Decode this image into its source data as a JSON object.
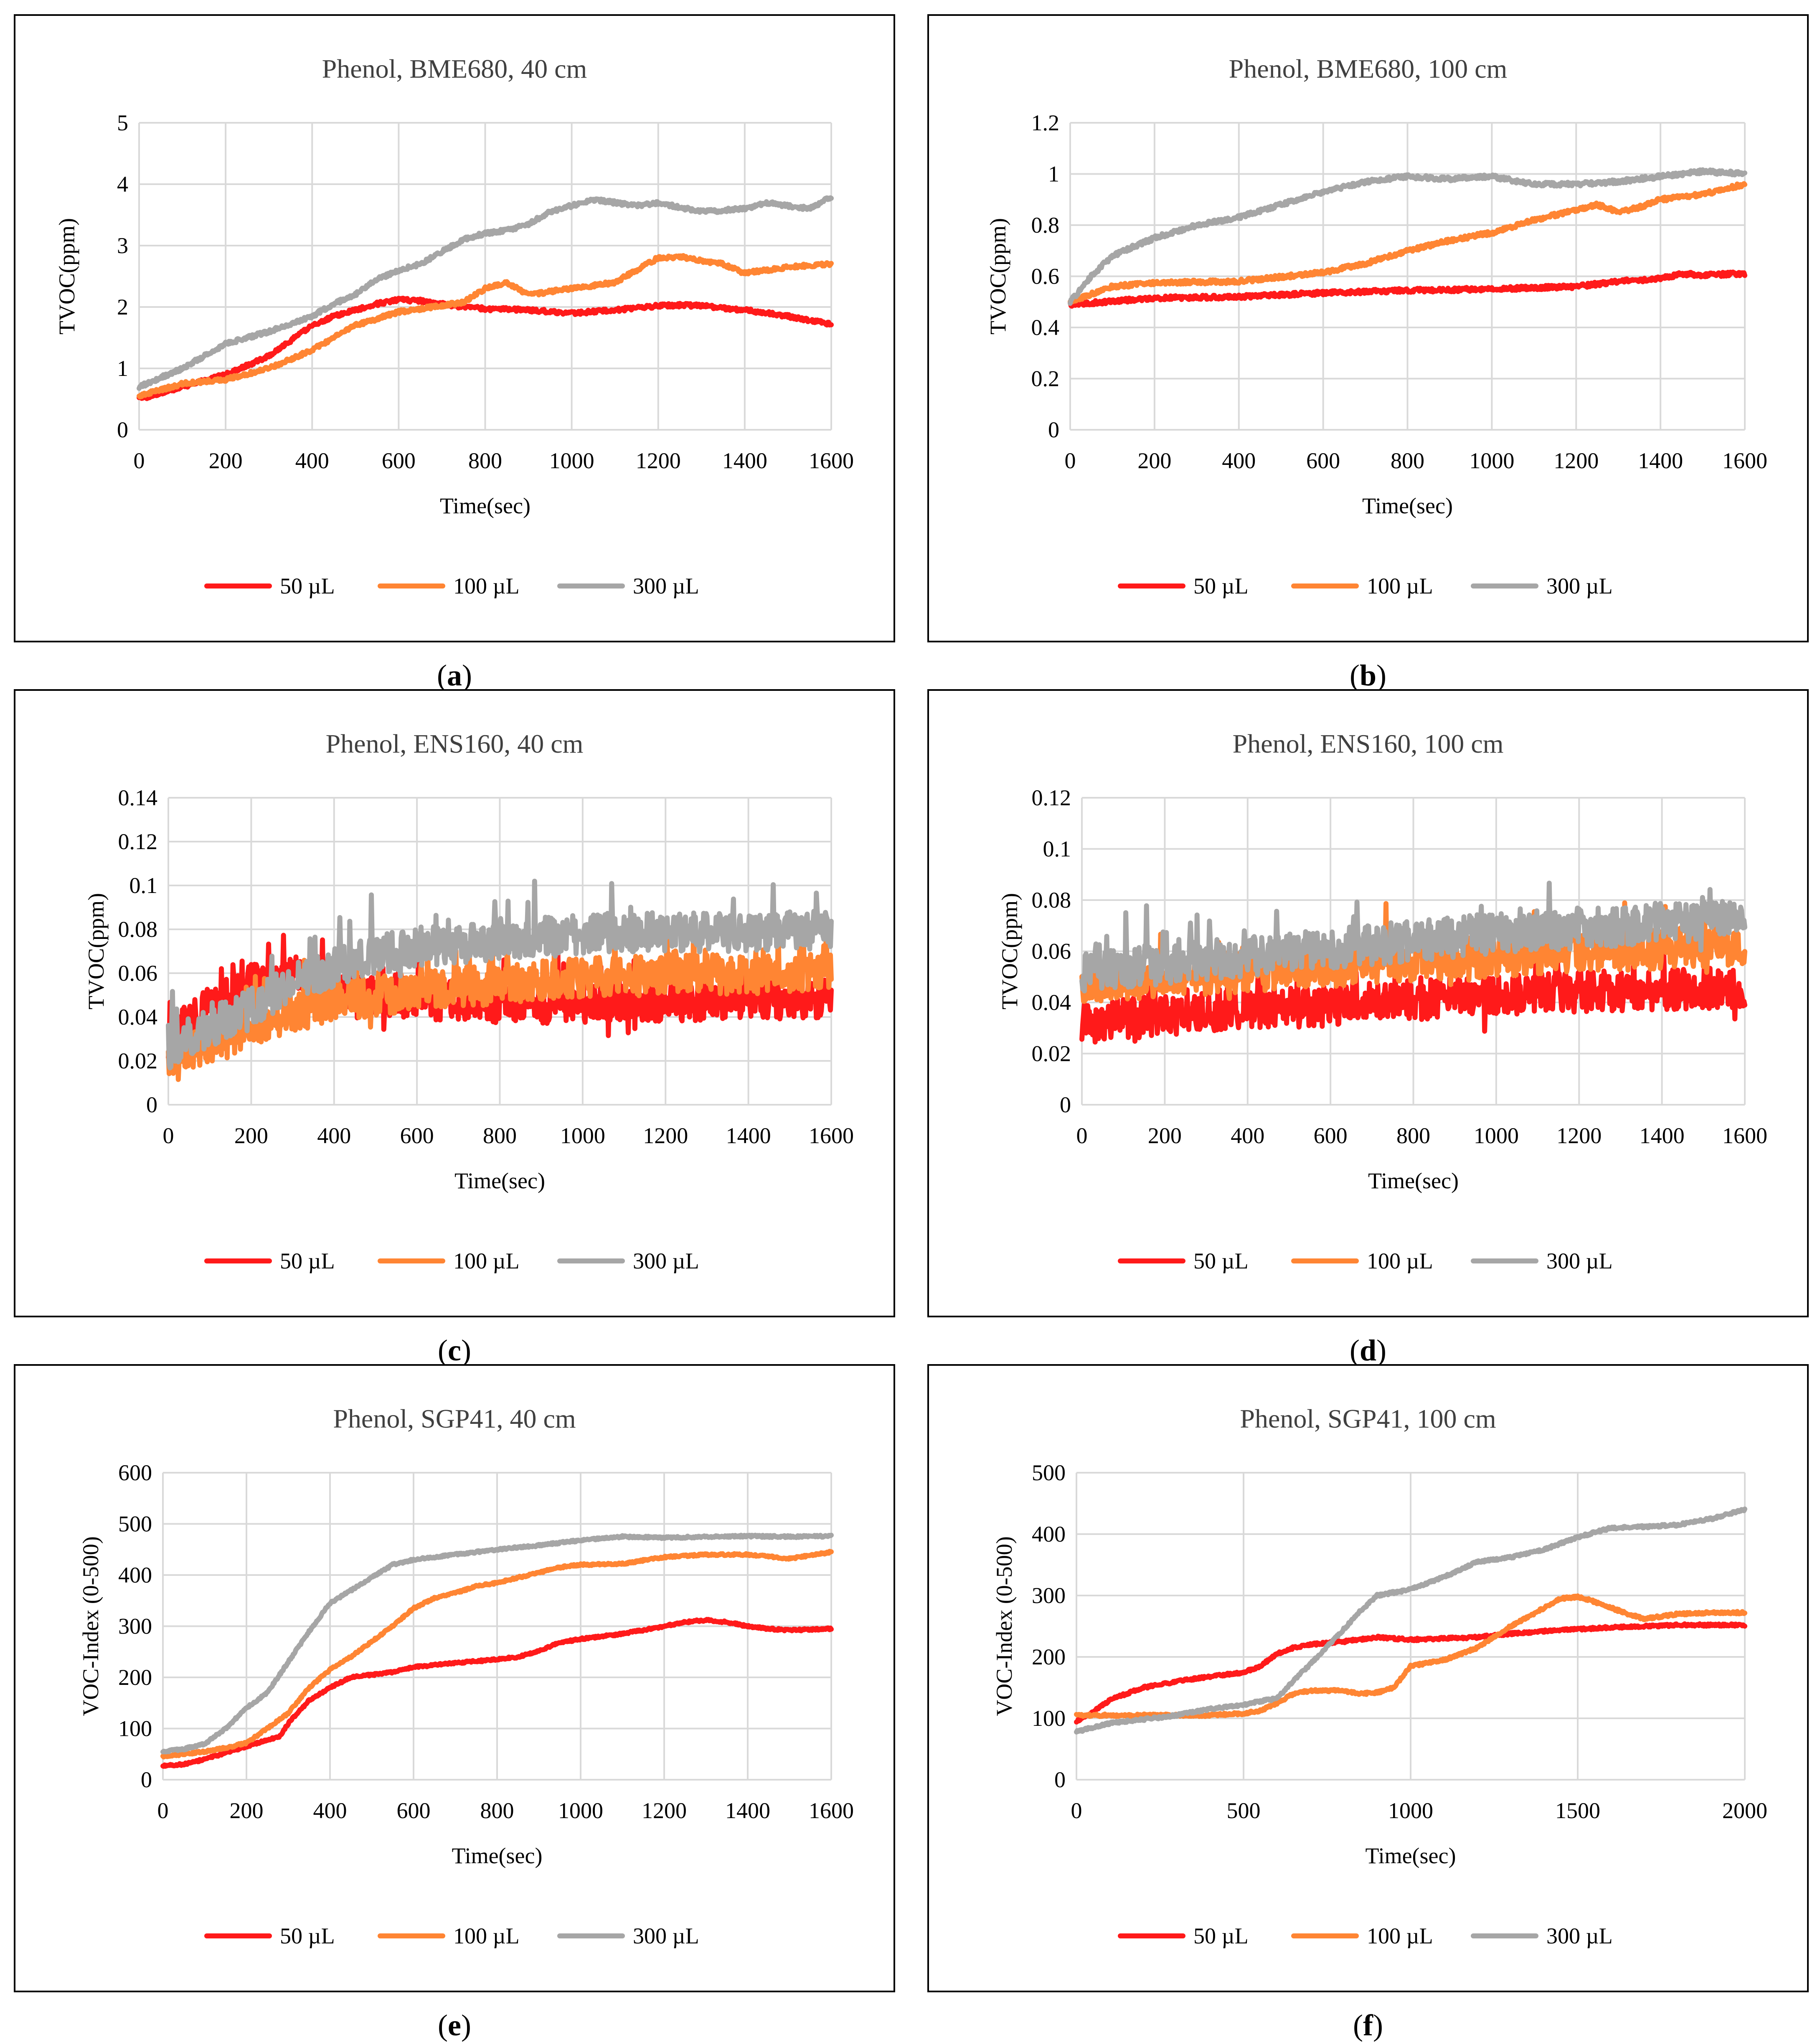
{
  "figure": {
    "colors": {
      "s50": "#ff1a1a",
      "s100": "#ff8533",
      "s300": "#a6a6a6"
    }
  },
  "chart_data": [
    {
      "id": "a",
      "type": "line",
      "caption_letter": "a",
      "title": "Phenol, BME680, 40 cm",
      "xlabel": "Time(sec)",
      "ylabel": "TVOC(ppm)",
      "xlim": [
        0,
        1600
      ],
      "ylim": [
        0,
        5
      ],
      "xticks": [
        0,
        200,
        400,
        600,
        800,
        1000,
        1200,
        1400,
        1600
      ],
      "yticks": [
        0,
        1,
        2,
        3,
        4,
        5
      ],
      "ytick_labels": [
        "0",
        "1",
        "2",
        "3",
        "4",
        "5"
      ],
      "xtick_labels": [
        "0",
        "200",
        "400",
        "600",
        "800",
        "1000",
        "1200",
        "1400",
        "1600"
      ],
      "noise": 0.03,
      "series": [
        {
          "name": "50 µL",
          "color": "#ff1a1a",
          "x": [
            0,
            100,
            200,
            300,
            400,
            450,
            500,
            550,
            600,
            650,
            700,
            750,
            800,
            900,
            1000,
            1100,
            1200,
            1250,
            1300,
            1400,
            1500,
            1600
          ],
          "y": [
            0.5,
            0.7,
            0.9,
            1.2,
            1.7,
            1.85,
            1.95,
            2.05,
            2.12,
            2.1,
            2.05,
            2.0,
            1.97,
            1.95,
            1.9,
            1.95,
            2.02,
            2.03,
            2.02,
            1.95,
            1.85,
            1.72
          ]
        },
        {
          "name": "100 µL",
          "color": "#ff8533",
          "x": [
            0,
            100,
            200,
            300,
            400,
            500,
            600,
            700,
            750,
            800,
            850,
            900,
            1000,
            1100,
            1150,
            1200,
            1250,
            1300,
            1350,
            1400,
            1500,
            1600
          ],
          "y": [
            0.55,
            0.75,
            0.82,
            1.0,
            1.3,
            1.7,
            1.92,
            2.02,
            2.08,
            2.3,
            2.4,
            2.2,
            2.3,
            2.4,
            2.6,
            2.8,
            2.82,
            2.75,
            2.7,
            2.55,
            2.65,
            2.7
          ]
        },
        {
          "name": "300 µL",
          "color": "#a6a6a6",
          "x": [
            0,
            100,
            200,
            300,
            400,
            450,
            500,
            550,
            600,
            650,
            700,
            750,
            800,
            850,
            900,
            950,
            1000,
            1050,
            1100,
            1150,
            1200,
            1300,
            1400,
            1450,
            1500,
            1550,
            1600
          ],
          "y": [
            0.7,
            1.0,
            1.4,
            1.6,
            1.85,
            2.05,
            2.2,
            2.45,
            2.6,
            2.7,
            2.9,
            3.1,
            3.2,
            3.25,
            3.35,
            3.55,
            3.65,
            3.75,
            3.7,
            3.65,
            3.7,
            3.55,
            3.6,
            3.7,
            3.65,
            3.6,
            3.8
          ]
        }
      ]
    },
    {
      "id": "b",
      "type": "line",
      "caption_letter": "b",
      "title": "Phenol, BME680, 100 cm",
      "xlabel": "Time(sec)",
      "ylabel": "TVOC(ppm)",
      "xlim": [
        0,
        1600
      ],
      "ylim": [
        0,
        1.2
      ],
      "xticks": [
        0,
        200,
        400,
        600,
        800,
        1000,
        1200,
        1400,
        1600
      ],
      "yticks": [
        0,
        0.2,
        0.4,
        0.6,
        0.8,
        1,
        1.2
      ],
      "ytick_labels": [
        "0",
        "0.2",
        "0.4",
        "0.6",
        "0.8",
        "1",
        "1.2"
      ],
      "xtick_labels": [
        "0",
        "200",
        "400",
        "600",
        "800",
        "1000",
        "1200",
        "1400",
        "1600"
      ],
      "noise": 0.008,
      "series": [
        {
          "name": "50 µL",
          "color": "#ff1a1a",
          "x": [
            0,
            200,
            400,
            600,
            800,
            1000,
            1200,
            1300,
            1400,
            1450,
            1500,
            1600
          ],
          "y": [
            0.49,
            0.515,
            0.52,
            0.535,
            0.545,
            0.55,
            0.56,
            0.58,
            0.59,
            0.61,
            0.605,
            0.61
          ]
        },
        {
          "name": "100 µL",
          "color": "#ff8533",
          "x": [
            0,
            100,
            200,
            400,
            600,
            700,
            800,
            900,
            1000,
            1100,
            1200,
            1250,
            1300,
            1350,
            1400,
            1500,
            1600
          ],
          "y": [
            0.5,
            0.56,
            0.575,
            0.58,
            0.615,
            0.65,
            0.7,
            0.74,
            0.77,
            0.82,
            0.86,
            0.88,
            0.85,
            0.87,
            0.9,
            0.92,
            0.96
          ]
        },
        {
          "name": "300 µL",
          "color": "#a6a6a6",
          "x": [
            0,
            50,
            100,
            200,
            300,
            400,
            500,
            600,
            700,
            800,
            900,
            1000,
            1100,
            1200,
            1300,
            1400,
            1500,
            1600
          ],
          "y": [
            0.5,
            0.6,
            0.68,
            0.75,
            0.8,
            0.83,
            0.88,
            0.93,
            0.97,
            0.99,
            0.98,
            0.99,
            0.96,
            0.96,
            0.97,
            0.99,
            1.01,
            1.0
          ]
        }
      ]
    },
    {
      "id": "c",
      "type": "line",
      "caption_letter": "c",
      "title": "Phenol, ENS160, 40 cm",
      "xlabel": "Time(sec)",
      "ylabel": "TVOC(ppm)",
      "xlim": [
        0,
        1600
      ],
      "ylim": [
        0,
        0.14
      ],
      "xticks": [
        0,
        200,
        400,
        600,
        800,
        1000,
        1200,
        1400,
        1600
      ],
      "yticks": [
        0,
        0.02,
        0.04,
        0.06,
        0.08,
        0.1,
        0.12,
        0.14
      ],
      "ytick_labels": [
        "0",
        "0.02",
        "0.04",
        "0.06",
        "0.08",
        "0.1",
        "0.12",
        "0.14"
      ],
      "xtick_labels": [
        "0",
        "200",
        "400",
        "600",
        "800",
        "1000",
        "1200",
        "1400",
        "1600"
      ],
      "noise": 0.009,
      "series": [
        {
          "name": "50 µL",
          "color": "#ff1a1a",
          "x": [
            0,
            100,
            200,
            300,
            400,
            600,
            800,
            1000,
            1200,
            1400,
            1600
          ],
          "y": [
            0.03,
            0.045,
            0.055,
            0.058,
            0.053,
            0.048,
            0.046,
            0.046,
            0.047,
            0.048,
            0.048
          ]
        },
        {
          "name": "100 µL",
          "color": "#ff8533",
          "x": [
            0,
            100,
            200,
            300,
            400,
            600,
            800,
            1000,
            1200,
            1400,
            1600
          ],
          "y": [
            0.022,
            0.028,
            0.035,
            0.042,
            0.047,
            0.052,
            0.055,
            0.058,
            0.06,
            0.059,
            0.06
          ]
        },
        {
          "name": "300 µL",
          "color": "#a6a6a6",
          "x": [
            0,
            100,
            200,
            300,
            400,
            500,
            600,
            800,
            1000,
            1200,
            1400,
            1600
          ],
          "y": [
            0.025,
            0.035,
            0.045,
            0.055,
            0.063,
            0.068,
            0.072,
            0.075,
            0.078,
            0.079,
            0.078,
            0.08
          ]
        }
      ]
    },
    {
      "id": "d",
      "type": "line",
      "caption_letter": "d",
      "title": "Phenol, ENS160, 100 cm",
      "xlabel": "Time(sec)",
      "ylabel": "TVOC(ppm)",
      "xlim": [
        0,
        1600
      ],
      "ylim": [
        0,
        0.12
      ],
      "xticks": [
        0,
        200,
        400,
        600,
        800,
        1000,
        1200,
        1400,
        1600
      ],
      "yticks": [
        0,
        0.02,
        0.04,
        0.06,
        0.08,
        0.1,
        0.12
      ],
      "ytick_labels": [
        "0",
        "0.02",
        "0.04",
        "0.06",
        "0.08",
        "0.1",
        "0.12"
      ],
      "xtick_labels": [
        "0",
        "200",
        "400",
        "600",
        "800",
        "1000",
        "1200",
        "1400",
        "1600"
      ],
      "noise": 0.008,
      "series": [
        {
          "name": "50 µL",
          "color": "#ff1a1a",
          "x": [
            0,
            200,
            400,
            600,
            800,
            1000,
            1200,
            1400,
            1600
          ],
          "y": [
            0.032,
            0.035,
            0.037,
            0.039,
            0.041,
            0.043,
            0.044,
            0.045,
            0.046
          ]
        },
        {
          "name": "100 µL",
          "color": "#ff8533",
          "x": [
            0,
            200,
            400,
            600,
            800,
            1000,
            1200,
            1400,
            1600
          ],
          "y": [
            0.048,
            0.05,
            0.052,
            0.054,
            0.056,
            0.058,
            0.06,
            0.061,
            0.062
          ]
        },
        {
          "name": "300 µL",
          "color": "#a6a6a6",
          "x": [
            0,
            200,
            400,
            600,
            800,
            1000,
            1200,
            1400,
            1600
          ],
          "y": [
            0.052,
            0.055,
            0.058,
            0.061,
            0.064,
            0.067,
            0.069,
            0.071,
            0.073
          ]
        }
      ]
    },
    {
      "id": "e",
      "type": "line",
      "caption_letter": "e",
      "title": "Phenol, SGP41, 40 cm",
      "xlabel": "Time(sec)",
      "ylabel": "VOC-Index (0-500)",
      "xlim": [
        0,
        1600
      ],
      "ylim": [
        0,
        600
      ],
      "xticks": [
        0,
        200,
        400,
        600,
        800,
        1000,
        1200,
        1400,
        1600
      ],
      "yticks": [
        0,
        100,
        200,
        300,
        400,
        500,
        600
      ],
      "ytick_labels": [
        "0",
        "100",
        "200",
        "300",
        "400",
        "500",
        "600"
      ],
      "xtick_labels": [
        "0",
        "200",
        "400",
        "600",
        "800",
        "1000",
        "1200",
        "1400",
        "1600"
      ],
      "noise": 2,
      "series": [
        {
          "name": "50 µL",
          "color": "#ff1a1a",
          "x": [
            0,
            50,
            100,
            150,
            200,
            250,
            280,
            300,
            350,
            400,
            450,
            500,
            550,
            600,
            700,
            800,
            850,
            900,
            950,
            1000,
            1100,
            1200,
            1250,
            1300,
            1350,
            1400,
            1450,
            1500,
            1600
          ],
          "y": [
            28,
            30,
            40,
            52,
            65,
            78,
            85,
            110,
            155,
            180,
            200,
            205,
            210,
            220,
            228,
            235,
            240,
            252,
            268,
            275,
            285,
            300,
            308,
            312,
            308,
            300,
            295,
            292,
            295
          ]
        },
        {
          "name": "100 µL",
          "color": "#ff8533",
          "x": [
            0,
            50,
            100,
            150,
            200,
            250,
            300,
            350,
            400,
            450,
            500,
            550,
            600,
            650,
            700,
            750,
            800,
            850,
            900,
            950,
            1000,
            1100,
            1200,
            1300,
            1400,
            1500,
            1600
          ],
          "y": [
            45,
            50,
            55,
            62,
            72,
            100,
            130,
            180,
            215,
            240,
            270,
            300,
            335,
            355,
            365,
            378,
            385,
            395,
            405,
            415,
            420,
            422,
            435,
            440,
            440,
            432,
            445
          ]
        },
        {
          "name": "300 µL",
          "color": "#a6a6a6",
          "x": [
            0,
            50,
            100,
            150,
            200,
            250,
            300,
            350,
            400,
            450,
            500,
            550,
            600,
            700,
            800,
            900,
            1000,
            1050,
            1100,
            1200,
            1300,
            1400,
            1500,
            1600
          ],
          "y": [
            55,
            60,
            70,
            100,
            140,
            170,
            230,
            290,
            345,
            370,
            395,
            420,
            430,
            440,
            450,
            458,
            468,
            472,
            475,
            473,
            475,
            476,
            475,
            476
          ]
        }
      ]
    },
    {
      "id": "f",
      "type": "line",
      "caption_letter": "f",
      "title": "Phenol, SGP41, 100 cm",
      "xlabel": "Time(sec)",
      "ylabel": "VOC-Index (0-500)",
      "xlim": [
        0,
        2000
      ],
      "ylim": [
        0,
        500
      ],
      "xticks": [
        0,
        500,
        1000,
        1500,
        2000
      ],
      "yticks": [
        0,
        100,
        200,
        300,
        400,
        500
      ],
      "ytick_labels": [
        "0",
        "100",
        "200",
        "300",
        "400",
        "500"
      ],
      "xtick_labels": [
        "0",
        "500",
        "1000",
        "1500",
        "2000"
      ],
      "noise": 2,
      "series": [
        {
          "name": "50 µL",
          "color": "#ff1a1a",
          "x": [
            0,
            50,
            100,
            200,
            300,
            400,
            500,
            550,
            600,
            650,
            700,
            800,
            900,
            1000,
            1100,
            1200,
            1300,
            1400,
            1500,
            1600,
            1700,
            1800,
            1900,
            2000
          ],
          "y": [
            95,
            110,
            130,
            150,
            160,
            168,
            175,
            185,
            205,
            215,
            220,
            225,
            232,
            228,
            230,
            232,
            238,
            242,
            245,
            248,
            250,
            252,
            252,
            252
          ]
        },
        {
          "name": "100 µL",
          "color": "#ff8533",
          "x": [
            0,
            100,
            200,
            300,
            400,
            500,
            550,
            600,
            650,
            700,
            800,
            850,
            900,
            950,
            1000,
            1100,
            1200,
            1300,
            1400,
            1450,
            1500,
            1550,
            1600,
            1650,
            1700,
            1800,
            1900,
            2000
          ],
          "y": [
            105,
            105,
            105,
            105,
            105,
            108,
            112,
            125,
            140,
            145,
            145,
            140,
            142,
            150,
            185,
            195,
            215,
            250,
            280,
            295,
            298,
            290,
            280,
            270,
            262,
            270,
            272,
            272
          ]
        },
        {
          "name": "300 µL",
          "color": "#a6a6a6",
          "x": [
            0,
            50,
            100,
            200,
            300,
            400,
            500,
            550,
            600,
            650,
            700,
            800,
            850,
            900,
            1000,
            1100,
            1200,
            1300,
            1400,
            1500,
            1600,
            1700,
            1800,
            1900,
            2000
          ],
          "y": [
            78,
            85,
            92,
            98,
            105,
            115,
            122,
            128,
            132,
            162,
            188,
            245,
            275,
            300,
            310,
            330,
            355,
            362,
            375,
            395,
            410,
            412,
            415,
            425,
            440
          ]
        }
      ]
    }
  ],
  "legend": {
    "labels": [
      "50 µL",
      "100 µL",
      "300 µL"
    ]
  }
}
